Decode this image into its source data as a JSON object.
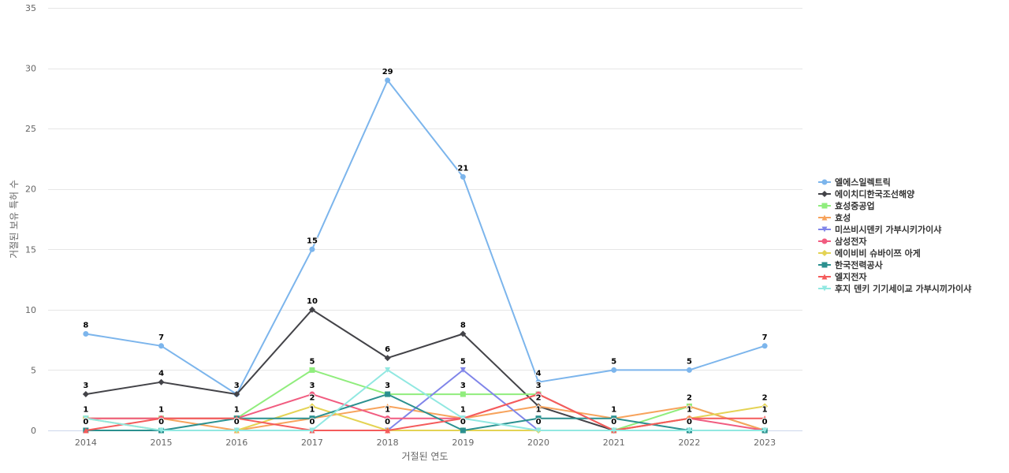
{
  "chart_data": {
    "type": "line",
    "xlabel": "거절된 연도",
    "ylabel": "거절된 보유 특허 수",
    "ylim": [
      0,
      35
    ],
    "yticks": [
      0,
      5,
      10,
      15,
      20,
      25,
      30,
      35
    ],
    "grid": true,
    "legend_position": "right",
    "categories": [
      "2014",
      "2015",
      "2016",
      "2017",
      "2018",
      "2019",
      "2020",
      "2021",
      "2022",
      "2023"
    ],
    "series": [
      {
        "name": "엘에스일렉트릭",
        "color": "#7cb5ec",
        "marker": "circle",
        "values": [
          8,
          7,
          3,
          15,
          29,
          21,
          4,
          5,
          5,
          7
        ],
        "labels": true
      },
      {
        "name": "에이치디한국조선해양",
        "color": "#434348",
        "marker": "diamond",
        "values": [
          3,
          4,
          3,
          10,
          6,
          8,
          2,
          0,
          0,
          0
        ],
        "labels": true
      },
      {
        "name": "효성중공업",
        "color": "#90ed7d",
        "marker": "square",
        "values": [
          1,
          1,
          1,
          5,
          3,
          3,
          3,
          0,
          2,
          0
        ],
        "labels": true
      },
      {
        "name": "효성",
        "color": "#f7a35c",
        "marker": "triangle",
        "values": [
          1,
          1,
          0,
          1,
          2,
          1,
          2,
          1,
          2,
          0
        ],
        "labels": false
      },
      {
        "name": "미쓰비시덴키 가부시키가이샤",
        "color": "#8085e9",
        "marker": "triangle-down",
        "values": [
          0,
          0,
          0,
          0,
          0,
          5,
          0,
          0,
          0,
          0
        ],
        "labels": true
      },
      {
        "name": "삼성전자",
        "color": "#f15c80",
        "marker": "circle",
        "values": [
          1,
          1,
          1,
          3,
          1,
          1,
          3,
          0,
          1,
          0
        ],
        "labels": true
      },
      {
        "name": "에이비비 슈바이쯔 아게",
        "color": "#e4d354",
        "marker": "diamond",
        "values": [
          1,
          0,
          0,
          2,
          0,
          0,
          0,
          0,
          1,
          2
        ],
        "labels": true
      },
      {
        "name": "한국전력공사",
        "color": "#2b908f",
        "marker": "square",
        "values": [
          0,
          0,
          1,
          1,
          3,
          0,
          1,
          1,
          0,
          0
        ],
        "labels": true
      },
      {
        "name": "엘지전자",
        "color": "#f45b5b",
        "marker": "triangle",
        "values": [
          0,
          1,
          1,
          0,
          0,
          1,
          3,
          0,
          1,
          1
        ],
        "labels": true
      },
      {
        "name": "후지 덴키 기기세이교 가부시끼가이샤",
        "color": "#91e8e1",
        "marker": "triangle-down",
        "values": [
          1,
          0,
          0,
          0,
          5,
          1,
          0,
          0,
          0,
          0
        ],
        "labels": false
      }
    ]
  }
}
